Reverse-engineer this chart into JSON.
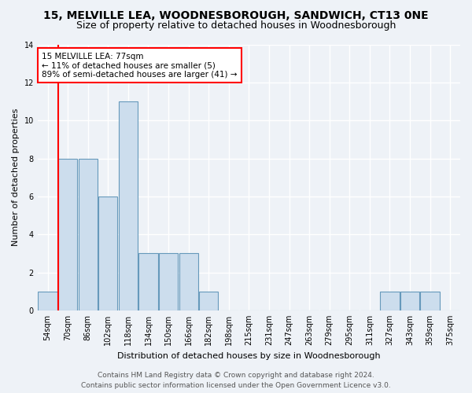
{
  "title1": "15, MELVILLE LEA, WOODNESBOROUGH, SANDWICH, CT13 0NE",
  "title2": "Size of property relative to detached houses in Woodnesborough",
  "xlabel": "Distribution of detached houses by size in Woodnesborough",
  "ylabel": "Number of detached properties",
  "categories": [
    "54sqm",
    "70sqm",
    "86sqm",
    "102sqm",
    "118sqm",
    "134sqm",
    "150sqm",
    "166sqm",
    "182sqm",
    "198sqm",
    "215sqm",
    "231sqm",
    "247sqm",
    "263sqm",
    "279sqm",
    "295sqm",
    "311sqm",
    "327sqm",
    "343sqm",
    "359sqm",
    "375sqm"
  ],
  "values": [
    1,
    8,
    8,
    6,
    11,
    3,
    3,
    3,
    1,
    0,
    0,
    0,
    0,
    0,
    0,
    0,
    0,
    1,
    1,
    1,
    0
  ],
  "bar_color": "#ccdded",
  "bar_edge_color": "#6699bb",
  "red_line_index": 1,
  "annotation_text": "15 MELVILLE LEA: 77sqm\n← 11% of detached houses are smaller (5)\n89% of semi-detached houses are larger (41) →",
  "annotation_box_color": "white",
  "annotation_box_edge": "red",
  "ylim": [
    0,
    14
  ],
  "yticks": [
    0,
    2,
    4,
    6,
    8,
    10,
    12,
    14
  ],
  "footer1": "Contains HM Land Registry data © Crown copyright and database right 2024.",
  "footer2": "Contains public sector information licensed under the Open Government Licence v3.0.",
  "bg_color": "#eef2f7",
  "grid_color": "#ffffff",
  "title1_fontsize": 10,
  "title2_fontsize": 9,
  "axis_label_fontsize": 8,
  "tick_fontsize": 7,
  "footer_fontsize": 6.5,
  "annot_fontsize": 7.5
}
